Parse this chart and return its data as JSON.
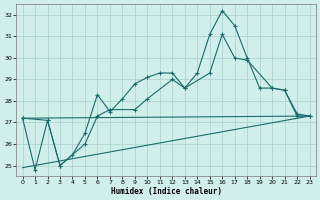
{
  "xlabel": "Humidex (Indice chaleur)",
  "background_color": "#d0eeea",
  "grid_color": "#b0d4d0",
  "line_color": "#1a6b6b",
  "xlim": [
    -0.5,
    23.5
  ],
  "ylim": [
    24.5,
    32.5
  ],
  "yticks": [
    25,
    26,
    27,
    28,
    29,
    30,
    31,
    32
  ],
  "xticks": [
    0,
    1,
    2,
    3,
    4,
    5,
    6,
    7,
    8,
    9,
    10,
    11,
    12,
    13,
    14,
    15,
    16,
    17,
    18,
    19,
    20,
    21,
    22,
    23
  ],
  "line1_x": [
    0,
    1,
    2,
    3,
    4,
    5,
    6,
    7,
    8,
    9,
    10,
    11,
    12,
    13,
    14,
    15,
    16,
    17,
    18,
    19,
    20,
    21,
    22,
    23
  ],
  "line1_y": [
    27.2,
    24.8,
    27.1,
    25.0,
    25.5,
    26.5,
    28.3,
    27.5,
    28.1,
    28.8,
    29.1,
    29.3,
    29.3,
    28.6,
    29.3,
    31.1,
    32.2,
    31.5,
    30.0,
    28.6,
    28.6,
    28.5,
    27.3,
    27.3
  ],
  "line2_x": [
    0,
    2,
    3,
    5,
    6,
    7,
    9,
    10,
    12,
    13,
    15,
    16,
    17,
    18,
    20,
    21,
    22,
    23
  ],
  "line2_y": [
    27.2,
    27.1,
    25.0,
    26.0,
    27.3,
    27.6,
    27.6,
    28.1,
    29.0,
    28.6,
    29.3,
    31.1,
    30.0,
    29.9,
    28.6,
    28.5,
    27.4,
    27.3
  ],
  "line3_x": [
    0,
    23
  ],
  "line3_y": [
    24.9,
    27.3
  ],
  "line4_x": [
    0,
    23
  ],
  "line4_y": [
    27.2,
    27.3
  ]
}
